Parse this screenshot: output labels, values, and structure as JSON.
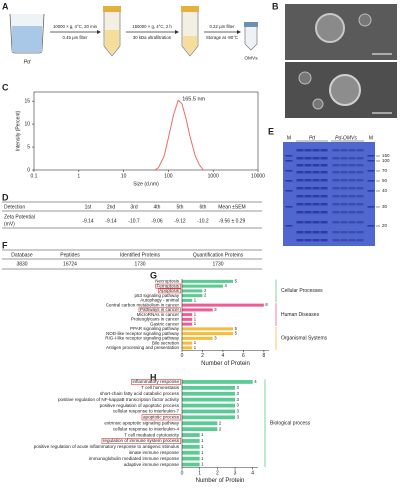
{
  "panel_labels": [
    "A",
    "B",
    "C",
    "D",
    "E",
    "F",
    "G",
    "H"
  ],
  "workflow": {
    "source": "Pd",
    "steps": [
      {
        "top": "10000 × g, 4°C, 20 min",
        "bottom": "0.45 μm filter"
      },
      {
        "top": "150000 × g, 4°C, 2 h",
        "bottom": "30 kDa ultrafiltration"
      },
      {
        "top": "0.22 μm filter",
        "bottom": "Storage at -80°C"
      }
    ],
    "product": "OMVs"
  },
  "zeta_table": {
    "header": [
      "Detection",
      "1st",
      "2nd",
      "3rd",
      "4th",
      "5th",
      "6th",
      "Mean ±SEM"
    ],
    "row_label": [
      "Zeta Potential",
      "(mV)"
    ],
    "values": [
      "-9.14",
      "-9.14",
      "-10.7",
      "-9.06",
      "-9.12",
      "-10.2",
      "-9.56 ± 0.29"
    ]
  },
  "gel": {
    "lanes": [
      "M",
      "Pd",
      "Pd-OMVs",
      "M"
    ],
    "markers": [
      150,
      100,
      70,
      50,
      40,
      30,
      20
    ]
  },
  "proteomics_table": {
    "header": [
      "Database",
      "Peptides",
      "Identified Proteins",
      "Quantification Proteins"
    ],
    "row": [
      "3830",
      "16724",
      "1730",
      "1730"
    ]
  },
  "chart_data": [
    {
      "type": "line",
      "xlabel": "Size (d.nm)",
      "ylabel": "Intensity (Percent)",
      "annotation": "165.5 nm",
      "x": [
        50,
        60,
        80,
        100,
        130,
        165.5,
        200,
        250,
        300,
        400,
        500,
        600
      ],
      "values": [
        0,
        0.5,
        3,
        7,
        12,
        15.2,
        14.5,
        11,
        7.5,
        3,
        1,
        0
      ],
      "color": "#f06a6a",
      "xscale": "log",
      "xlim": [
        0.1,
        10000
      ],
      "xticks": [
        0.1,
        1,
        10,
        100,
        1000,
        10000
      ],
      "ylim": [
        0,
        17
      ],
      "yticks": [
        0,
        5,
        10,
        15
      ]
    },
    {
      "type": "bar",
      "orientation": "horizontal",
      "xlabel": "Number of Protein",
      "xlim": [
        0,
        8.5
      ],
      "xticks": [
        0,
        2,
        4,
        6,
        8
      ],
      "highlight_color": "#e03a3a",
      "groups": [
        {
          "label": "Cellular Processes",
          "color": "#5ccb93",
          "categories": [
            "Necroptosis",
            "Ferroptosis",
            "Apoptosis",
            "p53 signaling pathway",
            "Autophagy - animal"
          ],
          "values": [
            5,
            4,
            2,
            2,
            1
          ],
          "boxed": [
            1,
            2
          ]
        },
        {
          "label": "Human Diseases",
          "color": "#ec5f96",
          "categories": [
            "Central carbon metabolism in cancer",
            "Pathways in cancer",
            "MicroRNAs in cancer",
            "Proteoglycans in cancer",
            "Gastric cancer"
          ],
          "values": [
            8,
            3,
            1,
            1,
            1
          ],
          "boxed": [
            1
          ]
        },
        {
          "label": "Organismal Systems",
          "color": "#f5bd3e",
          "categories": [
            "PPAR signaling pathway",
            "NOD-like receptor signaling pathway",
            "RIG-I-like receptor signaling pathway",
            "Bile secretion",
            "Antigen processing and presentation"
          ],
          "values": [
            5,
            5,
            3,
            1,
            1
          ],
          "boxed": []
        }
      ]
    },
    {
      "type": "bar",
      "orientation": "horizontal",
      "xlabel": "Number of Protein",
      "xlim": [
        0,
        4.3
      ],
      "xticks": [
        0,
        1,
        2,
        3,
        4
      ],
      "highlight_color": "#e03a3a",
      "groups": [
        {
          "label": "Biological process",
          "color": "#5ccb93",
          "categories": [
            "inflammatory response",
            "T cell homeostasis",
            "short-chain fatty acid catabolic process",
            "positive regulation of NF-kappaB transcription factor activity",
            "positive regulation of apoptotic process",
            "cellular response to interleukin-7",
            "apoptotic process",
            "extrinsic apoptotic signaling pathway",
            "cellular response to interleukin-4",
            "T cell mediated cytotoxicity",
            "regulation of immune system process",
            "positive regulation of acute inflammatory response to antigenic stimulus",
            "innate immune response",
            "immunoglobulin mediated immune response",
            "adaptive immune response"
          ],
          "values": [
            4,
            3,
            3,
            3,
            3,
            3,
            3,
            2,
            2,
            1,
            1,
            1,
            1,
            1,
            1
          ],
          "boxed": [
            0,
            6,
            10
          ]
        }
      ]
    }
  ]
}
